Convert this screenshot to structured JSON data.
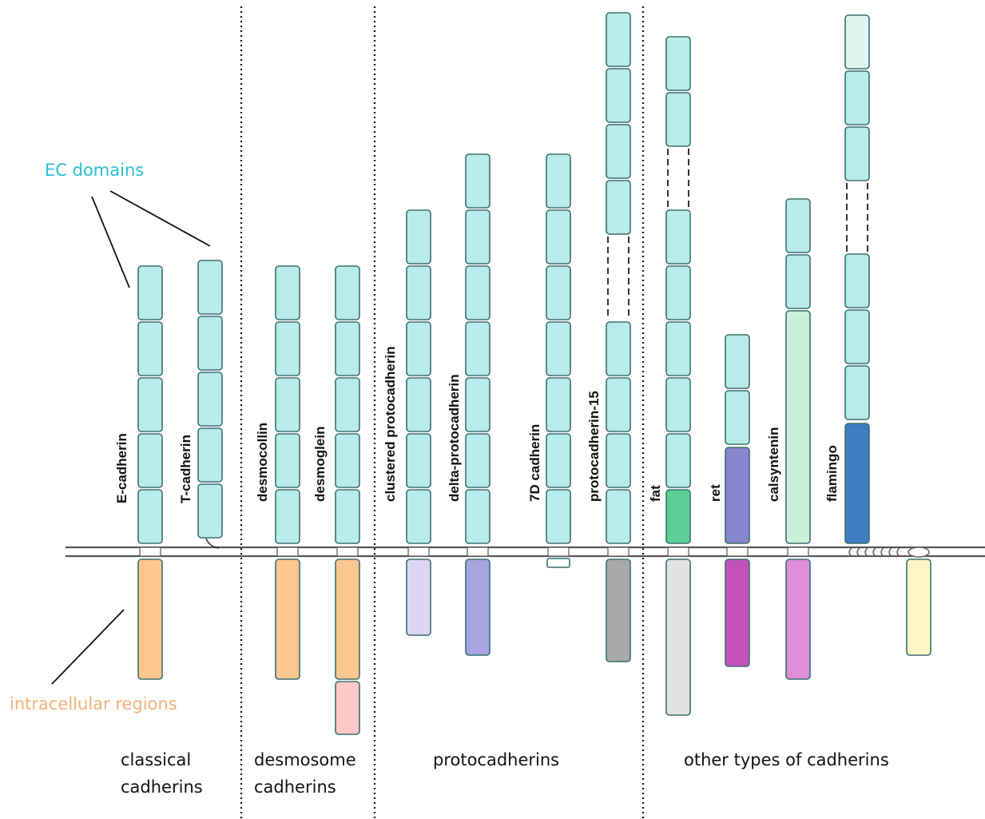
{
  "annotations": {
    "ec_domains": "EC domains",
    "intracellular_regions": "intracellular regions"
  },
  "colors": {
    "ec_domain": "#b8ecea",
    "ec_label": "#2bbfd0",
    "intracellular_label": "#f2b27a"
  },
  "groups": [
    {
      "line1": "classical",
      "line2": "cadherins"
    },
    {
      "line1": "desmosome",
      "line2": "cadherins"
    },
    {
      "line1": "protocadherins",
      "line2": ""
    },
    {
      "line1": "other types of cadherins",
      "line2": ""
    }
  ],
  "proteins": [
    {
      "name": "E-cadherin"
    },
    {
      "name": "T-cadherin"
    },
    {
      "name": "desmocollin"
    },
    {
      "name": "desmoglein"
    },
    {
      "name": "clustered protocadherin"
    },
    {
      "name": "delta-protocadherin"
    },
    {
      "name": "7D cadherin"
    },
    {
      "name": "protocadherin-15"
    },
    {
      "name": "fat"
    },
    {
      "name": "ret"
    },
    {
      "name": "calsyntenin"
    },
    {
      "name": "flamingo"
    }
  ]
}
